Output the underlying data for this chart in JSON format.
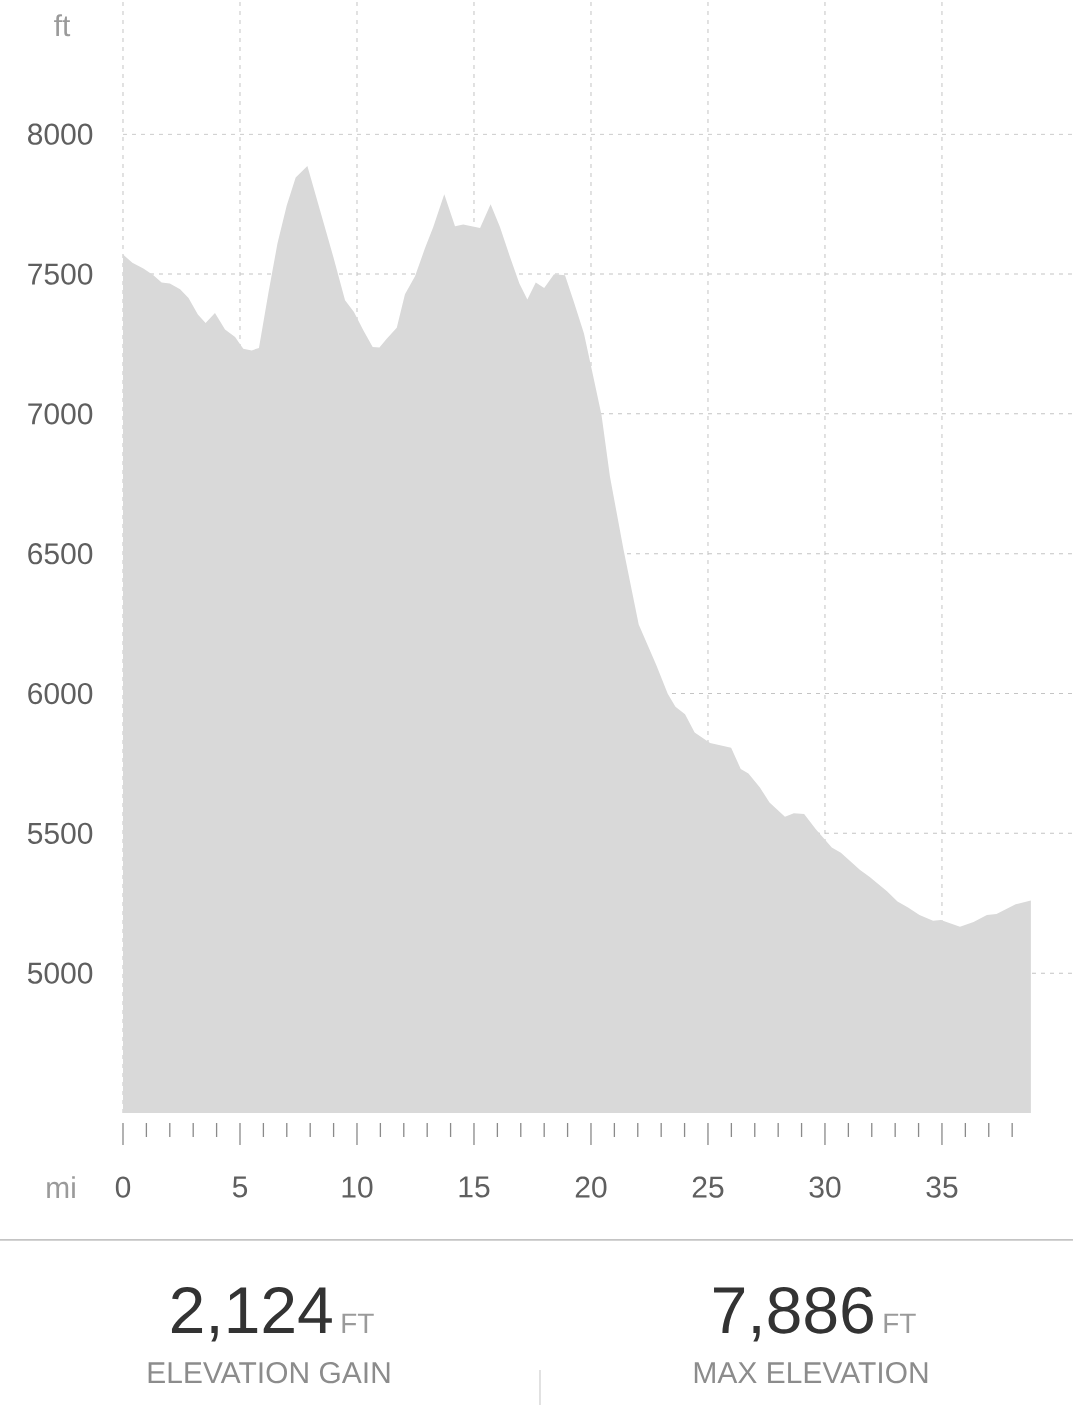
{
  "chart_data": {
    "type": "area",
    "xlabel": "mi",
    "ylabel": "ft",
    "color": "#d9d9d9",
    "grid": true,
    "xlim": [
      0,
      40.6
    ],
    "ylim": [
      4500,
      8480
    ],
    "xticks": [
      0,
      {
        "value": 1,
        "label": null
      },
      {
        "value": 2,
        "label": null
      },
      {
        "value": 3,
        "label": null
      },
      {
        "value": 4,
        "label": null
      },
      5,
      {
        "value": 6,
        "label": null
      },
      {
        "value": 7,
        "label": null
      },
      {
        "value": 8,
        "label": null
      },
      {
        "value": 9,
        "label": null
      },
      10,
      {
        "value": 11,
        "label": null
      },
      {
        "value": 12,
        "label": null
      },
      {
        "value": 13,
        "label": null
      },
      {
        "value": 14,
        "label": null
      },
      15,
      {
        "value": 16,
        "label": null
      },
      {
        "value": 17,
        "label": null
      },
      {
        "value": 18,
        "label": null
      },
      {
        "value": 19,
        "label": null
      },
      20,
      {
        "value": 21,
        "label": null
      },
      {
        "value": 22,
        "label": null
      },
      {
        "value": 23,
        "label": null
      },
      {
        "value": 24,
        "label": null
      },
      25,
      {
        "value": 26,
        "label": null
      },
      {
        "value": 27,
        "label": null
      },
      {
        "value": 28,
        "label": null
      },
      {
        "value": 29,
        "label": null
      },
      30,
      {
        "value": 31,
        "label": null
      },
      {
        "value": 32,
        "label": null
      },
      {
        "value": 33,
        "label": null
      },
      {
        "value": 34,
        "label": null
      },
      35,
      {
        "value": 36,
        "label": null
      },
      {
        "value": 37,
        "label": null
      },
      {
        "value": 38,
        "label": null
      }
    ],
    "yticks": [
      5000,
      5500,
      6000,
      6500,
      7000,
      7500,
      8000
    ],
    "x": [
      0,
      0.4,
      0.87,
      1.3,
      1.65,
      2.0,
      2.44,
      2.8,
      3.2,
      3.53,
      3.93,
      4.36,
      4.79,
      5.14,
      5.5,
      5.81,
      6.21,
      6.6,
      7.0,
      7.38,
      7.88,
      8.42,
      8.99,
      9.49,
      9.87,
      10.27,
      10.67,
      10.96,
      11.27,
      11.7,
      12.05,
      12.48,
      12.9,
      13.26,
      13.73,
      14.19,
      14.54,
      15.26,
      15.71,
      16.11,
      16.54,
      16.94,
      17.28,
      17.64,
      18.0,
      18.42,
      18.89,
      19.27,
      19.7,
      20.07,
      20.45,
      20.81,
      21.39,
      22.04,
      22.79,
      23.28,
      23.61,
      24.02,
      24.43,
      25.09,
      25.99,
      26.4,
      26.73,
      27.22,
      27.63,
      28.29,
      28.67,
      29.11,
      29.61,
      30.29,
      30.68,
      31.5,
      31.9,
      32.65,
      33.1,
      33.55,
      34.04,
      34.62,
      34.95,
      35.77,
      36.35,
      36.92,
      37.33,
      38.15,
      38.8
    ],
    "values": [
      7570,
      7540,
      7520,
      7496,
      7470,
      7466,
      7446,
      7414,
      7355,
      7325,
      7361,
      7302,
      7275,
      7233,
      7227,
      7236,
      7430,
      7609,
      7746,
      7845,
      7886,
      7728,
      7561,
      7406,
      7364,
      7299,
      7239,
      7237,
      7269,
      7308,
      7428,
      7492,
      7591,
      7668,
      7785,
      7671,
      7677,
      7665,
      7750,
      7668,
      7561,
      7466,
      7409,
      7470,
      7450,
      7499,
      7496,
      7400,
      7287,
      7144,
      6996,
      6776,
      6515,
      6247,
      6102,
      5999,
      5953,
      5926,
      5861,
      5823,
      5806,
      5730,
      5714,
      5664,
      5610,
      5559,
      5572,
      5569,
      5515,
      5449,
      5431,
      5369,
      5345,
      5293,
      5256,
      5235,
      5208,
      5187,
      5190,
      5166,
      5183,
      5208,
      5212,
      5246,
      5260
    ],
    "annotations": [
      "2,124",
      "FT",
      "ELEVATION GAIN",
      "7,886",
      "FT",
      "MAX ELEVATION"
    ]
  }
}
